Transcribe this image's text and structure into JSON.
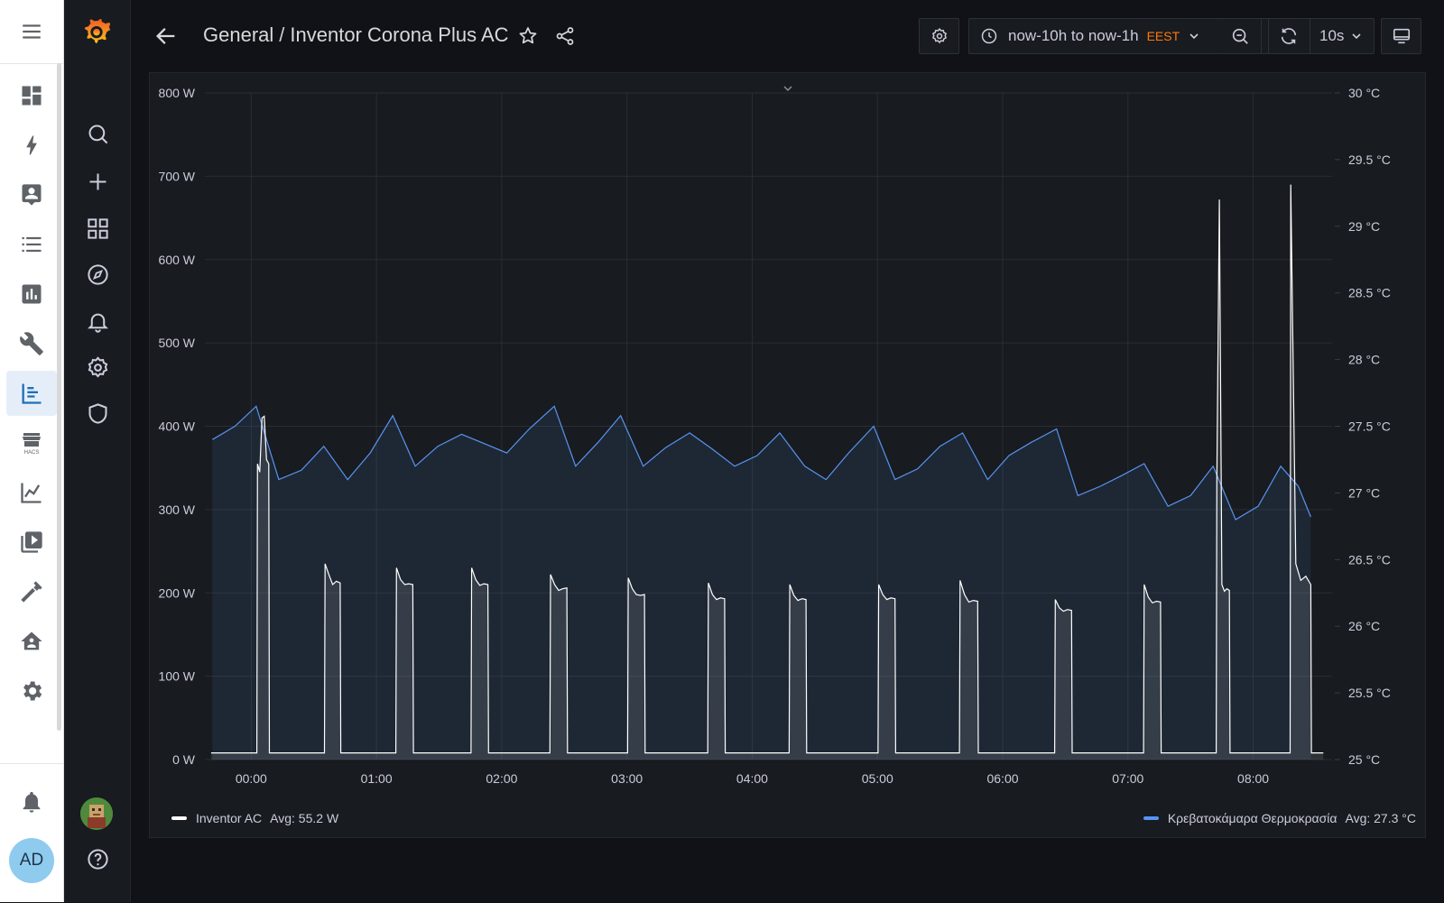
{
  "ha_sidebar": {
    "menu_icon": "hamburger-menu-icon",
    "items": [
      {
        "icon": "overview-dashboard-icon"
      },
      {
        "icon": "energy-lightning-icon"
      },
      {
        "icon": "map-person-icon"
      },
      {
        "icon": "logbook-list-icon"
      },
      {
        "icon": "history-chart-icon"
      },
      {
        "icon": "wrench-icon"
      },
      {
        "icon": "grafana-panel-icon",
        "active": true
      },
      {
        "icon": "hacs-store-icon",
        "label": "HACS"
      },
      {
        "icon": "trend-line-chart-icon"
      },
      {
        "icon": "media-browser-icon"
      },
      {
        "icon": "hammer-icon"
      },
      {
        "icon": "home-network-icon"
      },
      {
        "icon": "settings-gear-icon"
      }
    ],
    "notifications_icon": "bell-icon",
    "user_initials": "AD"
  },
  "grafana_menu": {
    "items": [
      "search-icon",
      "plus-icon",
      "dashboards-grid-icon",
      "explore-compass-icon",
      "alerting-bell-icon",
      "configuration-gear-icon",
      "server-admin-shield-icon"
    ],
    "help_icon": "help-circle-icon"
  },
  "topbar": {
    "breadcrumb_folder": "General",
    "breadcrumb_separator": "/",
    "dashboard_title": "Inventor Corona Plus AC",
    "time_range": "now-10h to now-1h",
    "timezone": "EEST",
    "refresh_interval": "10s",
    "accent_color": "#ff780a"
  },
  "chart_data": {
    "type": "line",
    "y_left": {
      "ticks": [
        "0 W",
        "100 W",
        "200 W",
        "300 W",
        "400 W",
        "500 W",
        "600 W",
        "700 W",
        "800 W"
      ],
      "range": [
        0,
        800
      ],
      "unit": "W"
    },
    "y_right": {
      "ticks": [
        "25 °C",
        "25.5 °C",
        "26 °C",
        "26.5 °C",
        "27 °C",
        "27.5 °C",
        "28 °C",
        "28.5 °C",
        "29 °C",
        "29.5 °C",
        "30 °C"
      ],
      "range": [
        25,
        30
      ],
      "unit": "°C"
    },
    "x_ticks": [
      "00:00",
      "01:00",
      "02:00",
      "03:00",
      "04:00",
      "05:00",
      "06:00",
      "07:00",
      "08:00"
    ],
    "x_range_hours": [
      -0.37,
      8.63
    ],
    "grid": true,
    "legend_placement": "bottom",
    "series": [
      {
        "name": "Inventor AC",
        "axis": "left",
        "color": "#ffffff",
        "avg": "Avg: 55.2 W",
        "cycles": [
          {
            "start": 0.05,
            "end": 0.14,
            "values": [
              355,
              345,
              410,
              412,
              360,
              355
            ]
          },
          {
            "start": 0.59,
            "end": 0.71,
            "values": [
              235,
              222,
              210,
              214,
              212
            ]
          },
          {
            "start": 1.16,
            "end": 1.29,
            "values": [
              230,
              216,
              210,
              211,
              210
            ]
          },
          {
            "start": 1.76,
            "end": 1.89,
            "values": [
              230,
              216,
              209,
              211,
              210
            ]
          },
          {
            "start": 2.39,
            "end": 2.52,
            "values": [
              222,
              210,
              203,
              205,
              206
            ]
          },
          {
            "start": 3.01,
            "end": 3.14,
            "values": [
              218,
              205,
              198,
              197,
              198
            ]
          },
          {
            "start": 3.65,
            "end": 3.78,
            "values": [
              212,
              198,
              192,
              194,
              193
            ]
          },
          {
            "start": 4.3,
            "end": 4.43,
            "values": [
              210,
              197,
              191,
              193,
              192
            ]
          },
          {
            "start": 5.01,
            "end": 5.14,
            "values": [
              210,
              198,
              192,
              194,
              193
            ]
          },
          {
            "start": 5.66,
            "end": 5.8,
            "values": [
              215,
              198,
              189,
              191,
              190
            ]
          },
          {
            "start": 6.42,
            "end": 6.55,
            "values": [
              192,
              182,
              178,
              180,
              179
            ]
          },
          {
            "start": 7.13,
            "end": 7.26,
            "values": [
              210,
              195,
              188,
              190,
              189
            ]
          },
          {
            "start": 7.71,
            "end": 7.81,
            "values": [
              335,
              672,
              210,
              202,
              205,
              203
            ]
          },
          {
            "start": 8.3,
            "end": 8.46,
            "values": [
              690,
              235,
              215,
              220,
              210
            ]
          }
        ],
        "baseline": 8
      },
      {
        "name": "Κρεβατοκάμαρα Θερμοκρασία",
        "axis": "right",
        "color": "#5794f2",
        "avg": "Avg: 27.3 °C",
        "x": [
          -0.31,
          -0.13,
          0.04,
          0.22,
          0.4,
          0.58,
          0.77,
          0.95,
          1.13,
          1.31,
          1.49,
          1.68,
          1.86,
          2.04,
          2.22,
          2.42,
          2.59,
          2.77,
          2.95,
          3.13,
          3.31,
          3.5,
          3.68,
          3.86,
          4.04,
          4.22,
          4.42,
          4.59,
          4.77,
          4.97,
          5.14,
          5.32,
          5.5,
          5.68,
          5.88,
          6.05,
          6.23,
          6.43,
          6.6,
          6.78,
          6.95,
          7.13,
          7.32,
          7.5,
          7.68,
          7.86,
          8.04,
          8.22,
          8.36,
          8.46
        ],
        "y": [
          27.4,
          27.5,
          27.65,
          27.1,
          27.17,
          27.35,
          27.1,
          27.3,
          27.58,
          27.2,
          27.35,
          27.44,
          27.37,
          27.3,
          27.48,
          27.65,
          27.2,
          27.38,
          27.58,
          27.2,
          27.34,
          27.45,
          27.33,
          27.2,
          27.28,
          27.45,
          27.2,
          27.1,
          27.3,
          27.5,
          27.1,
          27.18,
          27.35,
          27.45,
          27.1,
          27.28,
          27.38,
          27.48,
          26.98,
          27.05,
          27.13,
          27.22,
          26.9,
          26.98,
          27.2,
          26.8,
          26.9,
          27.2,
          27.05,
          26.82
        ]
      }
    ]
  }
}
